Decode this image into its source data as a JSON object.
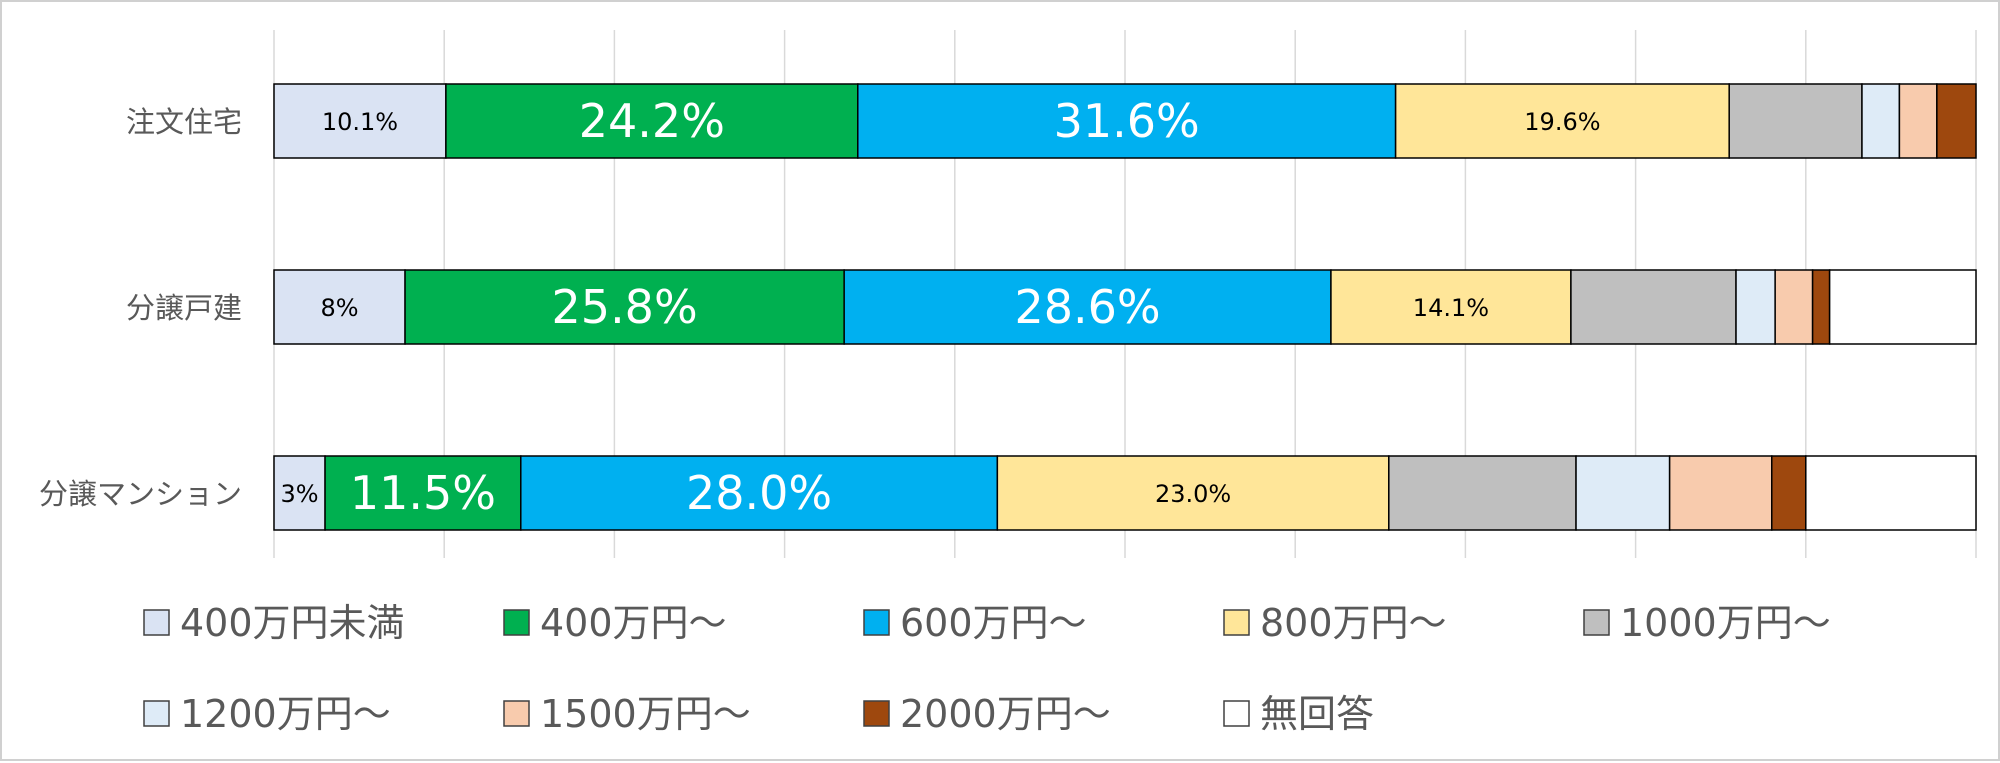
{
  "chart_data": {
    "type": "bar",
    "orientation": "horizontal",
    "stacked": true,
    "title": "",
    "xlabel": "",
    "ylabel": "",
    "xlim": [
      0,
      100
    ],
    "grid": true,
    "legend_position": "bottom",
    "categories": [
      "注文住宅",
      "分譲戸建",
      "分譲マンション"
    ],
    "series": [
      {
        "name": "400万円未満",
        "color": "#DAE3F3",
        "values": [
          10.1,
          7.7,
          3.0
        ]
      },
      {
        "name": "400万円〜",
        "color": "#00B050",
        "values": [
          24.2,
          25.8,
          11.5
        ]
      },
      {
        "name": "600万円〜",
        "color": "#00B0F0",
        "values": [
          31.6,
          28.6,
          28.0
        ]
      },
      {
        "name": "800万円〜",
        "color": "#FFE699",
        "values": [
          19.6,
          14.1,
          23.0
        ]
      },
      {
        "name": "1000万円〜",
        "color": "#BFBFBF",
        "values": [
          7.8,
          9.7,
          11.0
        ]
      },
      {
        "name": "1200万円〜",
        "color": "#DEEBF7",
        "values": [
          2.2,
          2.3,
          5.5
        ]
      },
      {
        "name": "1500万円〜",
        "color": "#F8CBAD",
        "values": [
          2.2,
          2.2,
          6.0
        ]
      },
      {
        "name": "2000万円〜",
        "color": "#9E480E",
        "values": [
          2.3,
          1.0,
          2.0
        ]
      },
      {
        "name": "無回答",
        "color": "#FFFFFF",
        "values": [
          0,
          8.6,
          10.0
        ]
      }
    ],
    "data_labels": [
      [
        {
          "series": 0,
          "text": "10.1%",
          "style": "small"
        },
        {
          "series": 1,
          "text": "24.2%",
          "style": "large"
        },
        {
          "series": 2,
          "text": "31.6%",
          "style": "large"
        },
        {
          "series": 3,
          "text": "19.6%",
          "style": "small-dark"
        }
      ],
      [
        {
          "series": 0,
          "text": "8%",
          "style": "small"
        },
        {
          "series": 1,
          "text": "25.8%",
          "style": "large"
        },
        {
          "series": 2,
          "text": "28.6%",
          "style": "large"
        },
        {
          "series": 3,
          "text": "14.1%",
          "style": "small-dark"
        }
      ],
      [
        {
          "series": 0,
          "text": "3%",
          "style": "small"
        },
        {
          "series": 1,
          "text": "11.5%",
          "style": "large"
        },
        {
          "series": 2,
          "text": "28.0%",
          "style": "large"
        },
        {
          "series": 3,
          "text": "23.0%",
          "style": "small-dark"
        }
      ]
    ]
  },
  "colors": {
    "gridline": "#d9d9d9",
    "axis_text": "#595959",
    "legend_text": "#595959",
    "bar_outline": "#000000",
    "label_dark": "#000000",
    "label_light": "#ffffff"
  }
}
